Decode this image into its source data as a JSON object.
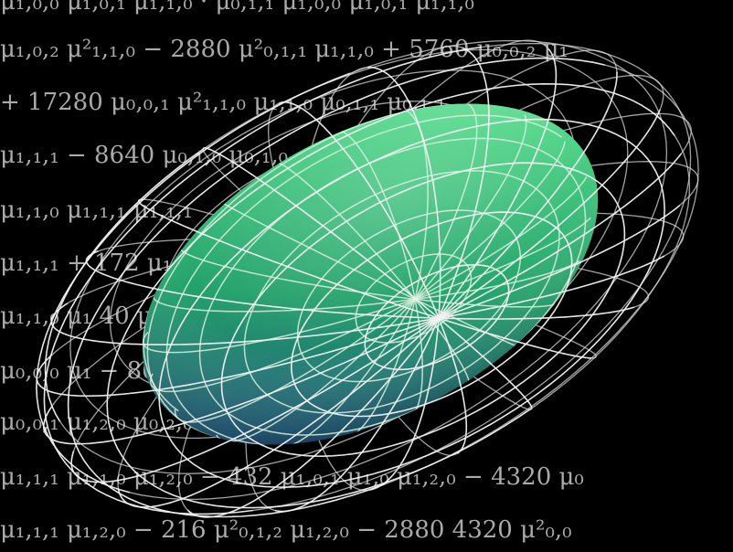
{
  "background_equations": [
    "μ₁,₀,₀ μ₁,₀,₁ μ₁,₁,₀ · μ₀,₁,₁ μ₁,₀,₀ μ₁,₀,₁ μ₁,₁,₀",
    "μ₁,₀,₂ μ²₁,₁,₀ − 2880 μ²₀,₁,₁ μ₁,₁,₀ + 5760 μ₀,₀,₂ μ₁",
    "+ 17280 μ₀,₀,₁ μ²₁,₁,₀ μ₁,₁,₀ μ₀,₁,₁ μ₀,₁,₁",
    "μ₁,₁,₁ − 8640 μ₀,₁,₀ μ₀,₁,₀",
    "μ₁,₁,₀ μ₁,₁,₁ μ₁,₁,₁",
    "μ₁,₁,₁ + 172 μ₁,₁,₀ μ₁",
    "μ₁,₁,₀ μ₁ 40 μ₀,₀,₁ μ",
    "μ₀,₀,₀ μ₁ − 8640 μ₀,₀,₁ μ₀",
    "μ₀,₀,₁ μ₁,₂,₀ μ₀,₂,₀ − 4320 μ²₀",
    "μ₁,₁,₁ μ₁,₁,₀ μ₁,₂,₀ − 432 μ₁,₀,₁ μ₁,₀ μ₁,₂,₀ − 4320 μ₀",
    "μ₁,₁,₁ μ₁,₂,₀ − 216 μ²₀,₁,₂ μ₁,₂,₀ − 2880 4320 μ²₀,₀"
  ],
  "colors": {
    "background": "#000000",
    "ellipsoid_light": "#6fe39a",
    "ellipsoid_mid": "#2fb56e",
    "ellipsoid_dark": "#1e6f6a",
    "ellipsoid_shadow": "#3a1d8a",
    "wireframe": "#f2f2f2"
  }
}
